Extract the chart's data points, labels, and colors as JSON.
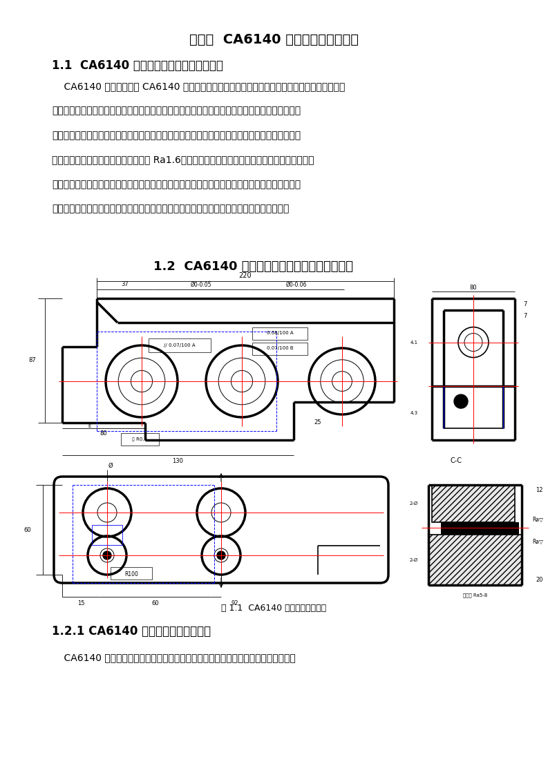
{
  "bg_color": "#ffffff",
  "page_width": 7.93,
  "page_height": 11.22,
  "dpi": 100,
  "title": "第一章  CA6140 机床后托架加工工艺",
  "section1_title": "1.1  CA6140 机床后托架的作用及简要分析",
  "para1_lines": [
    "    CA6140 机床后托架是 CA6140 机床的一个重要零件，它是在尾座下面安装在床身侧面的支承支",
    "架，主要用于支撑光杠、丝杠和操作杠。因为其零件尺寸较小，结构形状也不是很复杂，但侧面三",
    "杠孔和底面的精度要求较高，此外还有顶面的四孔要求加工，但是对精度要求不是很高。后托架上",
    "的底面和侧面三杠孔的粗糙度要求都是 Ra1.6，所以都要求精加工。其三杠孔的中心线和底平面有",
    "平面度的公差要求等。因为其尺寸精度、几何形状精度和相互位置精度，以及各表面的表面质量均",
    "影响机器或部件的装配质量，进而影响其性能与工作寿命，因此它的加工是非常关键和重要的"
  ],
  "section2_title": "1.2  CA6140 机床后托架的工艺要求及工艺分析",
  "fig_caption": "图 1.1  CA6140 机床后托架零件图",
  "cc_label": "C-C",
  "section3_title": "1.2.1 CA6140 机床后托架的技术要求",
  "para2_line": "    CA6140 车床的后托架共有两组加工表面，底面、侧面三孔、顶面的四个孔、以及左"
}
